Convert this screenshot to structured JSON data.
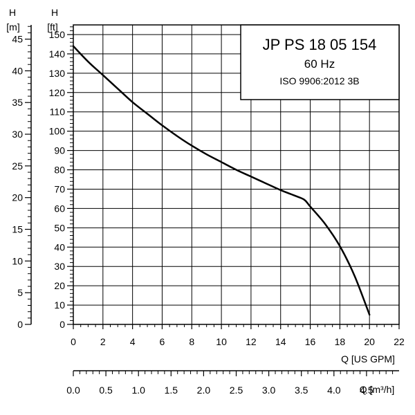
{
  "chart_data": {
    "type": "line",
    "title_box": {
      "model": "JP PS 18 05 154",
      "frequency": "60 Hz",
      "standard": "ISO 9906:2012 3B"
    },
    "x_axis": {
      "label": "Q [US GPM]",
      "range": [
        0,
        22
      ],
      "ticks": [
        "0",
        "2",
        "4",
        "6",
        "8",
        "10",
        "12",
        "14",
        "16",
        "18",
        "20",
        "22"
      ]
    },
    "x_axis_secondary": {
      "label": "Q [m³/h]",
      "range": [
        0,
        5
      ],
      "ticks": [
        "0.0",
        "0.5",
        "1.0",
        "1.5",
        "2.0",
        "2.5",
        "3.0",
        "3.5",
        "4.0",
        "4.5"
      ]
    },
    "y_axis_ft": {
      "label_top": "H",
      "label_unit": "[ft]",
      "range": [
        0,
        155
      ],
      "ticks": [
        "0",
        "10",
        "20",
        "30",
        "40",
        "50",
        "60",
        "70",
        "80",
        "90",
        "100",
        "110",
        "120",
        "130",
        "140",
        "150"
      ]
    },
    "y_axis_m": {
      "label_top": "H",
      "label_unit": "[m]",
      "range": [
        0,
        47.244
      ],
      "ticks": [
        "0",
        "5",
        "10",
        "15",
        "20",
        "25",
        "30",
        "35",
        "40",
        "45"
      ]
    },
    "grid": true,
    "curve_color": "#000000",
    "series": [
      {
        "x": [
          0,
          1,
          2,
          3,
          4,
          5,
          6,
          7,
          8,
          9,
          10,
          11,
          12,
          13,
          14,
          15,
          15.6,
          16,
          17,
          18,
          19,
          20
        ],
        "y": [
          144,
          136,
          129,
          122,
          115,
          109,
          103,
          97.5,
          92.5,
          88,
          84,
          80,
          76.5,
          73,
          69.5,
          66.5,
          64.5,
          61,
          52,
          40.5,
          25,
          5
        ]
      }
    ]
  }
}
